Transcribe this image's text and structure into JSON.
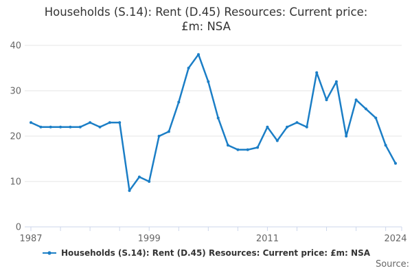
{
  "header": {
    "title_line1": "Households (S.14): Rent (D.45) Resources: Current price:",
    "title_line2": "£m: NSA"
  },
  "legend": {
    "label": "Households (S.14): Rent (D.45) Resources: Current price: £m: NSA"
  },
  "footer": {
    "source_label": "Source:"
  },
  "chart_data": {
    "type": "line",
    "title": "Households (S.14): Rent (D.45) Resources: Current price: £m: NSA",
    "xlabel": "",
    "ylabel": "",
    "x": [
      1987,
      1988,
      1989,
      1990,
      1991,
      1992,
      1993,
      1994,
      1995,
      1996,
      1997,
      1998,
      1999,
      2000,
      2001,
      2002,
      2003,
      2004,
      2005,
      2006,
      2007,
      2008,
      2009,
      2010,
      2011,
      2012,
      2013,
      2014,
      2015,
      2016,
      2017,
      2018,
      2019,
      2020,
      2021,
      2022,
      2023,
      2024
    ],
    "series": [
      {
        "name": "Households (S.14): Rent (D.45) Resources: Current price: £m: NSA",
        "values": [
          23,
          22,
          22,
          22,
          22,
          22,
          23,
          22,
          23,
          23,
          8,
          11,
          10,
          20,
          21,
          27.5,
          35,
          38,
          32,
          24,
          18,
          17,
          17,
          17.5,
          22,
          19,
          22,
          23,
          22,
          34,
          28,
          32,
          20,
          28,
          26,
          24,
          18,
          14
        ]
      }
    ],
    "x_axis": {
      "min": 1987,
      "max": 2024,
      "tick_interval_years": 3,
      "labeled_ticks": [
        1987,
        1999,
        2011,
        2024
      ]
    },
    "y_axis": {
      "min": 0,
      "max": 40,
      "ticks": [
        0,
        10,
        20,
        30,
        40
      ]
    },
    "grid": true,
    "legend_position": "bottom",
    "marker": "circle",
    "colors": {
      "line": "#1b7ec6",
      "grid": "#e6e6e6",
      "axis": "#ccd6eb",
      "tick_label": "#666666",
      "title": "#333333",
      "legend_text": "#333333",
      "source_text": "#666666"
    }
  }
}
